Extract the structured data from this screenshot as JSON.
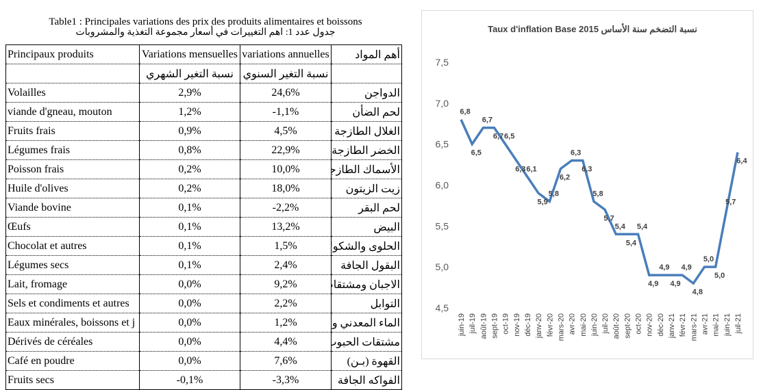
{
  "table": {
    "title": "Table1 : Principales variations des prix des produits alimentaires et boissons",
    "subtitle": "جدول عدد 1: اهم التغييرات في أسعار مجموعة التغذية والمشروبات",
    "header": [
      "Principaux produits",
      "Variations mensuelles",
      "variations annuelles",
      "أهم المواد"
    ],
    "subheader": [
      "نسبة التغير الشهري",
      "نسبة التغير السنوي"
    ],
    "rows": [
      [
        "Volailles",
        "2,9%",
        "24,6%",
        "الدواجن"
      ],
      [
        "viande d'gneau, mouton",
        "1,2%",
        "-1,1%",
        "لحم الضأن"
      ],
      [
        "Fruits frais",
        "0,9%",
        "4,5%",
        "الغلال الطازجة"
      ],
      [
        "Légumes frais",
        "0,8%",
        "22,9%",
        "الخضر الطازجة"
      ],
      [
        "Poisson frais",
        "0,2%",
        "10,0%",
        "الأسماك الطازجة"
      ],
      [
        "Huile d'olives",
        "0,2%",
        "18,0%",
        "زيت الزيتون"
      ],
      [
        "Viande bovine",
        "0,1%",
        "-2,2%",
        "لحم البقر"
      ],
      [
        "Œufs",
        "0,1%",
        "13,2%",
        "البيض"
      ],
      [
        "Chocolat et autres",
        "0,1%",
        "1,5%",
        "الحلوى والشكولاط"
      ],
      [
        "Légumes secs",
        "0,1%",
        "2,4%",
        "البقول الجافة"
      ],
      [
        "Lait, fromage",
        "0,0%",
        "9,2%",
        "الاجبان ومشتقات ا"
      ],
      [
        "Sels et condiments et autres",
        "0,0%",
        "2,2%",
        "التوابل"
      ],
      [
        "Eaux minérales, boissons et j",
        "0,0%",
        "1,2%",
        "الماء المعدني والمت"
      ],
      [
        "Dérivés de céréales",
        "0,0%",
        "4,4%",
        "مشتقات الحبوب"
      ],
      [
        "Café en poudre",
        "0,0%",
        "7,6%",
        "القهوة (بـن)"
      ],
      [
        "Fruits secs",
        "-0,1%",
        "-3,3%",
        "الفواكه الجافة"
      ]
    ]
  },
  "chart_data": {
    "type": "line",
    "title": "Taux d'inflation Base 2015 نسبة التضخم سنة الأساس",
    "categories": [
      "juin-19",
      "juil-19",
      "août-19",
      "sept-19",
      "oct-19",
      "nov-19",
      "déc-19",
      "janv-20",
      "févr-20",
      "mars-20",
      "avr-20",
      "mai-20",
      "juin-20",
      "juil-20",
      "août-20",
      "sept-20",
      "oct-20",
      "nov-20",
      "déc-20",
      "janv-21",
      "févr-21",
      "mars-21",
      "avr-21",
      "mai-21",
      "juin-21",
      "juil-21"
    ],
    "series": [
      {
        "color": "#4a7ebb",
        "values": [
          6.8,
          6.5,
          6.7,
          6.7,
          6.5,
          6.3,
          6.1,
          5.9,
          5.8,
          6.2,
          6.3,
          6.3,
          5.8,
          5.7,
          5.4,
          5.4,
          5.4,
          4.9,
          4.9,
          4.9,
          4.9,
          4.8,
          5.0,
          5.0,
          5.7,
          6.4
        ],
        "value_labels": [
          "6,8",
          "6,5",
          "6,7",
          "6,7",
          "6,5",
          "6,3",
          "6,1",
          "5,9",
          "5,8",
          "6,2",
          "6,3",
          "6,3",
          "5,8",
          "5,7",
          "5,4",
          "5,4",
          "5,4",
          "4,9",
          "4,9",
          "4,9",
          "4,9",
          "4,8",
          "5,0",
          "5,0",
          "5,7",
          "6,4"
        ]
      }
    ],
    "ylim": [
      4.5,
      7.6
    ],
    "yticks": [
      {
        "value": 4.5,
        "label": "4,5"
      },
      {
        "value": 5.0,
        "label": "5,0"
      },
      {
        "value": 5.5,
        "label": "5,5"
      },
      {
        "value": 6.0,
        "label": "6,0"
      },
      {
        "value": 6.5,
        "label": "6,5"
      },
      {
        "value": 7.0,
        "label": "7,0"
      },
      {
        "value": 7.5,
        "label": "7,5"
      }
    ]
  }
}
